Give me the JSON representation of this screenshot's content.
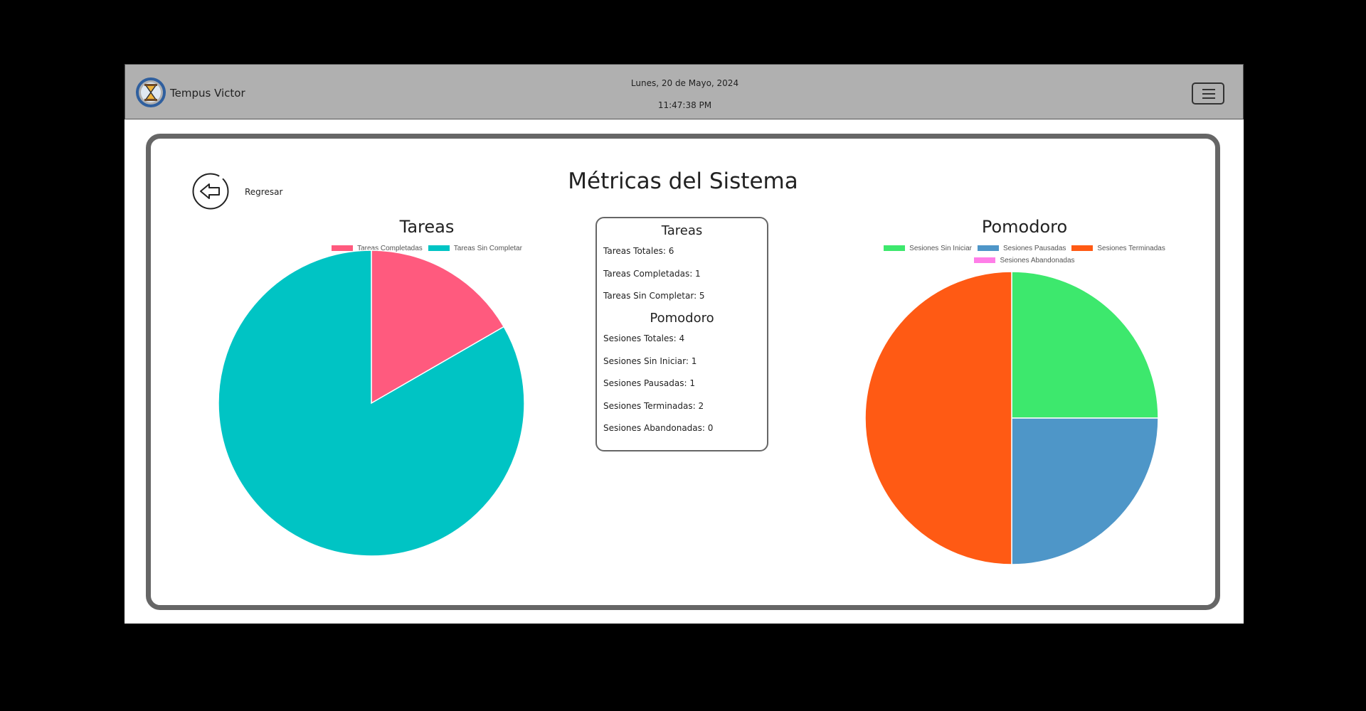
{
  "header": {
    "brand": "Tempus Victor",
    "date": "Lunes, 20 de Mayo, 2024",
    "time": "11:47:38 PM"
  },
  "page": {
    "title": "Métricas del Sistema",
    "back_label": "Regresar"
  },
  "stats": {
    "tareas_title": "Tareas",
    "tareas_totales": "Tareas Totales: 6",
    "tareas_completadas": "Tareas Completadas: 1",
    "tareas_sin_completar": "Tareas Sin Completar: 5",
    "pomodoro_title": "Pomodoro",
    "sesiones_totales": "Sesiones Totales: 4",
    "sesiones_sin_iniciar": "Sesiones Sin Iniciar: 1",
    "sesiones_pausadas": "Sesiones Pausadas: 1",
    "sesiones_terminadas": "Sesiones Terminadas: 2",
    "sesiones_abandonadas": "Sesiones Abandonadas: 0"
  },
  "chart_data": [
    {
      "type": "pie",
      "title": "Tareas",
      "categories": [
        "Tareas Completadas",
        "Tareas Sin Completar"
      ],
      "values": [
        1,
        5
      ],
      "colors": [
        "#ff5a7e",
        "#00c4c4"
      ],
      "legend": "top"
    },
    {
      "type": "pie",
      "title": "Pomodoro",
      "categories": [
        "Sesiones Sin Iniciar",
        "Sesiones Pausadas",
        "Sesiones Terminadas",
        "Sesiones Abandonadas"
      ],
      "values": [
        1,
        1,
        2,
        0
      ],
      "colors": [
        "#3de86d",
        "#4e96c8",
        "#ff5a14",
        "#ff7ee8"
      ],
      "legend": "top"
    }
  ],
  "icons": {
    "logo": "hourglass-logo-icon",
    "menu": "hamburger-menu-icon",
    "back": "arrow-left-icon"
  }
}
